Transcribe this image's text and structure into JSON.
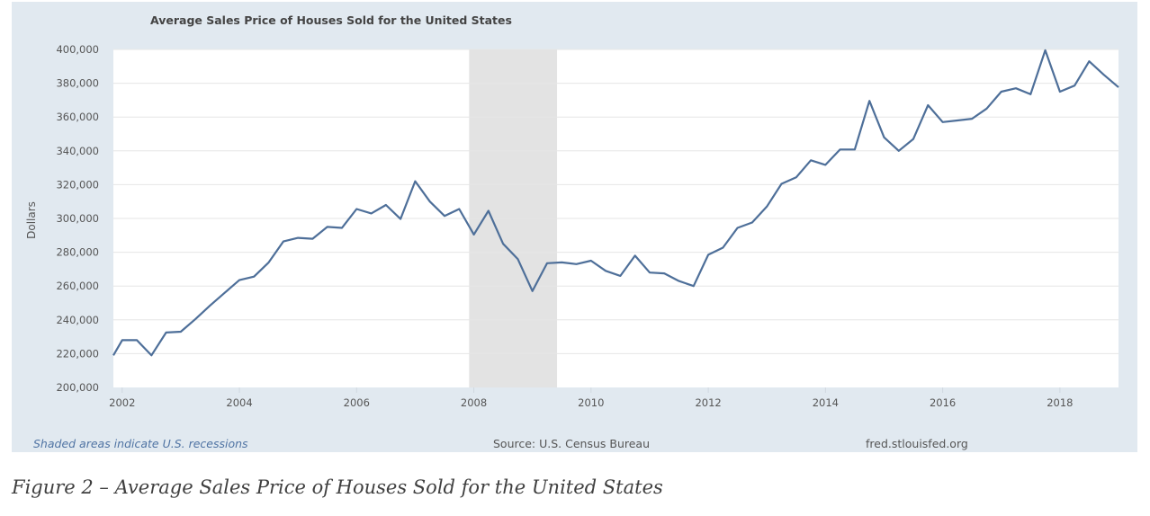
{
  "caption": "Figure 2 – Average Sales Price of Houses Sold for the United States",
  "footer": {
    "recession_note": "Shaded areas indicate U.S. recessions",
    "source": "Source: U.S. Census Bureau",
    "site": "fred.stlouisfed.org"
  },
  "colors": {
    "line": "#4e6f99",
    "recession": "#e3e3e3",
    "panel": "#e1e9f0",
    "plot": "#ffffff",
    "grid": "#e6e6e6"
  },
  "chart_data": {
    "type": "line",
    "title": "Average Sales Price of Houses Sold for the United States",
    "xlabel": "",
    "ylabel": "Dollars",
    "xlim": [
      2001.85,
      2019.0
    ],
    "ylim": [
      200000,
      400000
    ],
    "grid": true,
    "legend": "none",
    "x_ticks": [
      2002,
      2004,
      2006,
      2008,
      2010,
      2012,
      2014,
      2016,
      2018
    ],
    "x_tick_labels": [
      "2002",
      "2004",
      "2006",
      "2008",
      "2010",
      "2012",
      "2014",
      "2016",
      "2018"
    ],
    "y_ticks": [
      200000,
      220000,
      240000,
      260000,
      280000,
      300000,
      320000,
      340000,
      360000,
      380000,
      400000
    ],
    "y_tick_labels": [
      "200,000",
      "220,000",
      "240,000",
      "260,000",
      "280,000",
      "300,000",
      "320,000",
      "340,000",
      "360,000",
      "380,000",
      "400,000"
    ],
    "recessions": [
      {
        "start": 2007.92,
        "end": 2009.42
      }
    ],
    "series": [
      {
        "name": "Average Sales Price of Houses Sold for the United States",
        "x": [
          2001.85,
          2002.0,
          2002.25,
          2002.5,
          2002.75,
          2003.0,
          2003.25,
          2003.5,
          2003.75,
          2004.0,
          2004.25,
          2004.5,
          2004.75,
          2005.0,
          2005.25,
          2005.5,
          2005.75,
          2006.0,
          2006.25,
          2006.5,
          2006.75,
          2007.0,
          2007.25,
          2007.5,
          2007.75,
          2008.0,
          2008.25,
          2008.5,
          2008.75,
          2009.0,
          2009.25,
          2009.5,
          2009.75,
          2010.0,
          2010.25,
          2010.5,
          2010.75,
          2011.0,
          2011.25,
          2011.5,
          2011.75,
          2012.0,
          2012.25,
          2012.5,
          2012.75,
          2013.0,
          2013.25,
          2013.5,
          2013.75,
          2014.0,
          2014.25,
          2014.5,
          2014.75,
          2015.0,
          2015.25,
          2015.5,
          2015.75,
          2016.0,
          2016.25,
          2016.5,
          2016.75,
          2017.0,
          2017.25,
          2017.5,
          2017.75,
          2018.0,
          2018.25,
          2018.5,
          2018.75,
          2019.0
        ],
        "values": [
          219000,
          228000,
          228000,
          219000,
          232500,
          233000,
          240500,
          248500,
          256000,
          263500,
          265600,
          274000,
          286400,
          288500,
          288000,
          295000,
          294400,
          305600,
          303000,
          308000,
          299700,
          322000,
          310000,
          301500,
          305600,
          290500,
          304500,
          285000,
          276000,
          257000,
          273500,
          274000,
          273000,
          275000,
          269000,
          266000,
          278000,
          268000,
          267500,
          263000,
          260000,
          278500,
          282700,
          294400,
          297600,
          307000,
          320500,
          324300,
          334400,
          331700,
          340800,
          340800,
          369600,
          348000,
          340000,
          347000,
          367000,
          357000,
          358000,
          359000,
          365000,
          375000,
          377000,
          373500,
          399500,
          375000,
          378600,
          393000,
          385000,
          377600
        ]
      }
    ]
  }
}
